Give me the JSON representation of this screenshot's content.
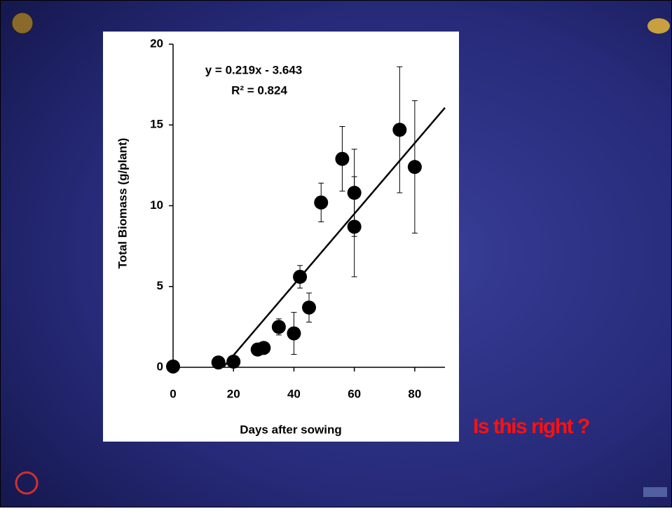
{
  "chart_data": {
    "type": "scatter",
    "x_label": "Days after sowing",
    "y_label": "Total Biomass (g/plant)",
    "annotations": [
      "y = 0.219x - 3.643",
      "R² = 0.824"
    ],
    "series": [
      {
        "color": "#000000",
        "x": [
          0,
          15,
          20,
          28,
          30,
          35,
          40,
          42,
          45,
          49,
          56,
          60,
          60,
          75,
          80
        ],
        "values": [
          0.05,
          0.3,
          0.35,
          1.1,
          1.2,
          2.5,
          2.1,
          5.6,
          3.7,
          10.2,
          12.9,
          10.8,
          8.7,
          14.7,
          12.4
        ],
        "errors": [
          0.05,
          0.15,
          0.2,
          0.2,
          0.2,
          0.5,
          1.3,
          0.7,
          0.9,
          1.2,
          2.0,
          2.7,
          3.1,
          3.9,
          4.1
        ]
      }
    ],
    "fit": {
      "x": [
        16.6,
        90
      ],
      "values": [
        0,
        16.067
      ],
      "color": "#000000"
    },
    "xlim": [
      0,
      90
    ],
    "xticks": [
      0,
      20,
      40,
      60,
      80
    ],
    "ylim": [
      0,
      20
    ],
    "yticks": [
      0,
      5,
      10,
      15,
      20
    ]
  },
  "slide": {
    "caption": "Is this right ?"
  }
}
